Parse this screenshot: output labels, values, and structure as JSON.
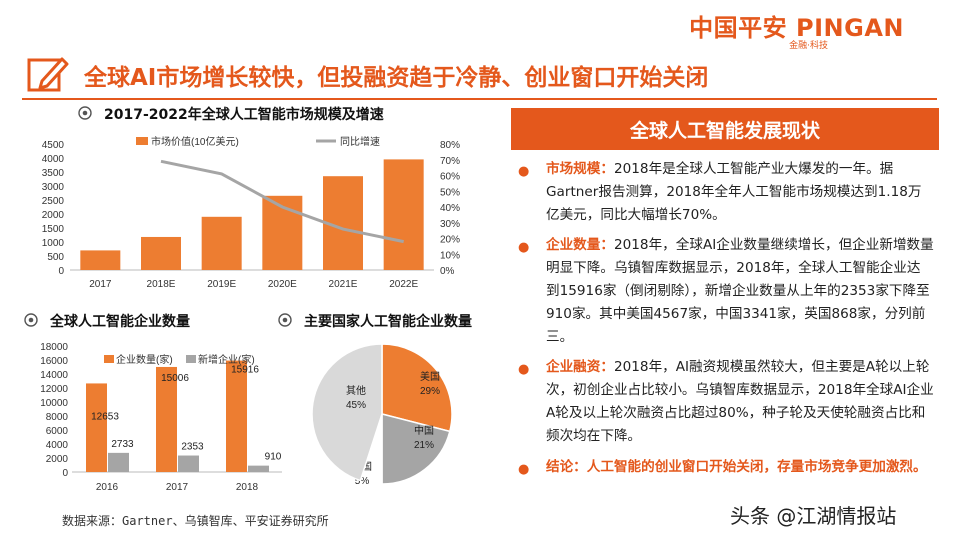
{
  "header": {
    "brand": "中国平安 PINGAN",
    "brand_sub": "金融·科技",
    "title": "全球AI市场增长较快，但投融资趋于冷静、创业窗口开始关闭",
    "title_icon": "edit-pencil-icon"
  },
  "right_panel": {
    "heading": "全球人工智能发展现状",
    "items": [
      {
        "head": "市场规模：",
        "text": "2018年是全球人工智能产业大爆发的一年。据Gartner报告测算，2018年全年人工智能市场规模达到1.18万亿美元，同比大幅增长70%。"
      },
      {
        "head": "企业数量：",
        "text": "2018年，全球AI企业数量继续增长，但企业新增数量明显下降。乌镇智库数据显示，2018年，全球人工智能企业达到15916家（倒闭剔除），新增企业数量从上年的2353家下降至910家。其中美国4567家，中国3341家，英国868家，分列前三。"
      },
      {
        "head": "企业融资：",
        "text": "2018年，AI融资规模虽然较大，但主要是A轮以上轮次，初创企业占比较小。乌镇智库数据显示，2018年全球AI企业A轮及以上轮次融资占比超过80%，种子轮及天使轮融资占比和频次均在下降。"
      },
      {
        "head": "结论：",
        "text": "人工智能的创业窗口开始关闭，存量市场竞争更加激烈。"
      }
    ]
  },
  "source": "数据来源：Gartner、乌镇智库、平安证券研究所",
  "watermark": "头条 @江湖情报站",
  "colors": {
    "accent": "#e4581c",
    "bar_orange": "#ed7d31",
    "bar_grey": "#a5a5a5",
    "pie_grey": "#d9d9d9"
  },
  "chart_data": [
    {
      "type": "bar",
      "title": "2017-2022年全球人工智能市场规模及增速",
      "categories": [
        "2017",
        "2018E",
        "2019E",
        "2020E",
        "2021E",
        "2022E"
      ],
      "series": [
        {
          "name": "市场价值(10亿美元)",
          "type": "bar",
          "axis": "left",
          "values": [
            700,
            1180,
            1900,
            2650,
            3350,
            3950
          ]
        },
        {
          "name": "同比增速",
          "type": "line",
          "axis": "right",
          "values": [
            null,
            69,
            61,
            40,
            26,
            18
          ]
        }
      ],
      "ylim": [
        0,
        4500
      ],
      "y_ticks": [
        "0",
        "500",
        "1000",
        "1500",
        "2000",
        "2500",
        "3000",
        "3500",
        "4000",
        "4500"
      ],
      "y2lim": [
        0,
        80
      ],
      "y2_ticks": [
        "0%",
        "10%",
        "20%",
        "30%",
        "40%",
        "50%",
        "60%",
        "70%",
        "80%"
      ],
      "legend": "top",
      "grid": false
    },
    {
      "type": "bar",
      "title": "全球人工智能企业数量",
      "categories": [
        "2016",
        "2017",
        "2018"
      ],
      "series": [
        {
          "name": "企业数量(家)",
          "values": [
            12653,
            15006,
            15916
          ],
          "labels": [
            "12653",
            "15006",
            "15916"
          ]
        },
        {
          "name": "新增企业(家)",
          "values": [
            2733,
            2353,
            910
          ],
          "labels": [
            "2733",
            "2353",
            "910"
          ]
        }
      ],
      "ylim": [
        0,
        18000
      ],
      "y_ticks": [
        "0",
        "2000",
        "4000",
        "6000",
        "8000",
        "10000",
        "12000",
        "14000",
        "16000",
        "18000"
      ],
      "legend": "top",
      "grid": false
    },
    {
      "type": "pie",
      "title": "主要国家人工智能企业数量",
      "slices": [
        {
          "label": "美国",
          "pct_label": "29%",
          "value": 29,
          "color": "#ed7d31"
        },
        {
          "label": "中国",
          "pct_label": "21%",
          "value": 21,
          "color": "#a5a5a5"
        },
        {
          "label": "英国",
          "pct_label": "5%",
          "value": 5,
          "color": "#ffffff"
        },
        {
          "label": "其他",
          "pct_label": "45%",
          "value": 45,
          "color": "#d9d9d9"
        }
      ]
    }
  ]
}
